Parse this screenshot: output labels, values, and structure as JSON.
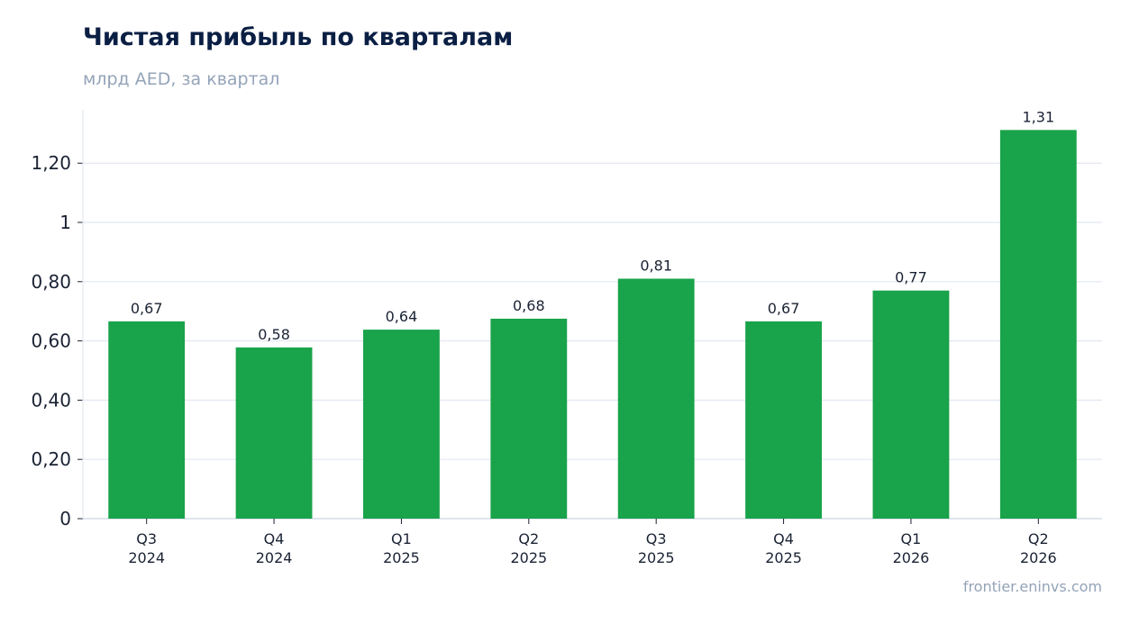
{
  "header": {
    "title": "Чистая прибыль по кварталам",
    "subtitle": "млрд AED, за квартал"
  },
  "footer": {
    "source": "frontier.eninvs.com"
  },
  "colors": {
    "bar": "#19a34a",
    "title": "#0b1f44",
    "muted": "#94a3b8",
    "grid": "#e2e8f0",
    "axis": "#cbd5e1",
    "text": "#1a2233"
  },
  "chart_data": {
    "type": "bar",
    "title": "Чистая прибыль по кварталам",
    "subtitle": "млрд AED, за квартал",
    "categories": [
      [
        "Q3",
        "2024"
      ],
      [
        "Q4",
        "2024"
      ],
      [
        "Q1",
        "2025"
      ],
      [
        "Q2",
        "2025"
      ],
      [
        "Q3",
        "2025"
      ],
      [
        "Q4",
        "2025"
      ],
      [
        "Q1",
        "2026"
      ],
      [
        "Q2",
        "2026"
      ]
    ],
    "values": [
      0.666,
      0.578,
      0.638,
      0.675,
      0.81,
      0.666,
      0.77,
      1.312
    ],
    "value_labels": [
      "0,67",
      "0,58",
      "0,64",
      "0,68",
      "0,81",
      "0,67",
      "0,77",
      "1,31"
    ],
    "ylim": [
      0,
      1.38
    ],
    "yticks": [
      0,
      0.2,
      0.4,
      0.6,
      0.8,
      1.0,
      1.2
    ],
    "ytick_labels": [
      "0",
      "0,20",
      "0,40",
      "0,60",
      "0,80",
      "1",
      "1,20"
    ],
    "grid": true,
    "legend": "none"
  }
}
